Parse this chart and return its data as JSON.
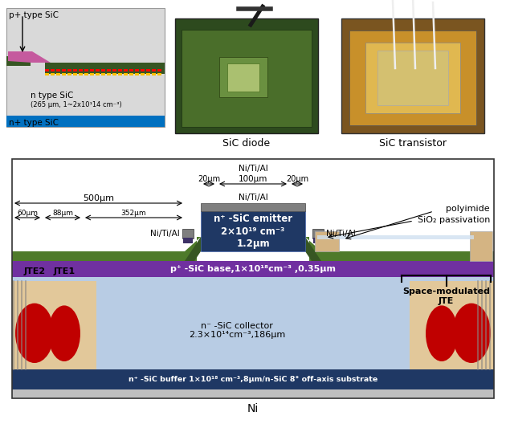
{
  "bg_color": "#ffffff",
  "tc": {
    "collector_bg": "#b8cce4",
    "buffer_bg": "#1f3864",
    "base_color": "#7030a0",
    "emitter_color": "#1f3864",
    "green_epi": "#375623",
    "green_epi_light": "#4e7a2a",
    "metal_gray": "#7f7f7f",
    "metal_light": "#a6a6a6",
    "jte_red": "#c00000",
    "jte_tan": "#e2c89a",
    "jte_stripe": "#888888",
    "ni_gray": "#bfbfbf",
    "contact_purple": "#3d3166",
    "white": "#ffffff",
    "black": "#000000",
    "border": "#333333"
  },
  "labels": {
    "p_type": "p+ type SiC",
    "n_type": "n type SiC",
    "n_type_sub": "(265 μm, 1~2x10¹14 cm⁻³)",
    "nplus_type": "n+ type SiC",
    "sic_diode": "SiC diode",
    "sic_transistor": "SiC transistor",
    "emitter": "n⁺ -SiC emitter\n2×10¹⁹ cm⁻³\n1.2μm",
    "base": "p⁺ -SiC base,1×10¹⁸cm⁻³ ,0.35μm",
    "collector1": "n⁻ -SiC collector",
    "collector2": "2.3×10¹⁴cm⁻³,186μm",
    "buffer": "n⁺ -SiC buffer 1×10¹⁸ cm⁻³,8μm/n-SiC 8° off-axis substrate",
    "ni": "Ni",
    "jte2": "JTE2",
    "jte1": "JTE1",
    "space_mod1": "Space-modulated",
    "space_mod2": "JTE",
    "polyimide": "polyimide",
    "sio2": "SiO₂ passivation",
    "metal_left": "Ni/Ti/Al",
    "metal_right": "Ni/Ti/Al",
    "metal_top": "Ni/Ti/Al",
    "dim_500": "500μm",
    "dim_60": "60μm",
    "dim_88": "88μm",
    "dim_352": "352μm",
    "dim_20L": "20μm",
    "dim_100": "100μm",
    "dim_20R": "20μm"
  }
}
